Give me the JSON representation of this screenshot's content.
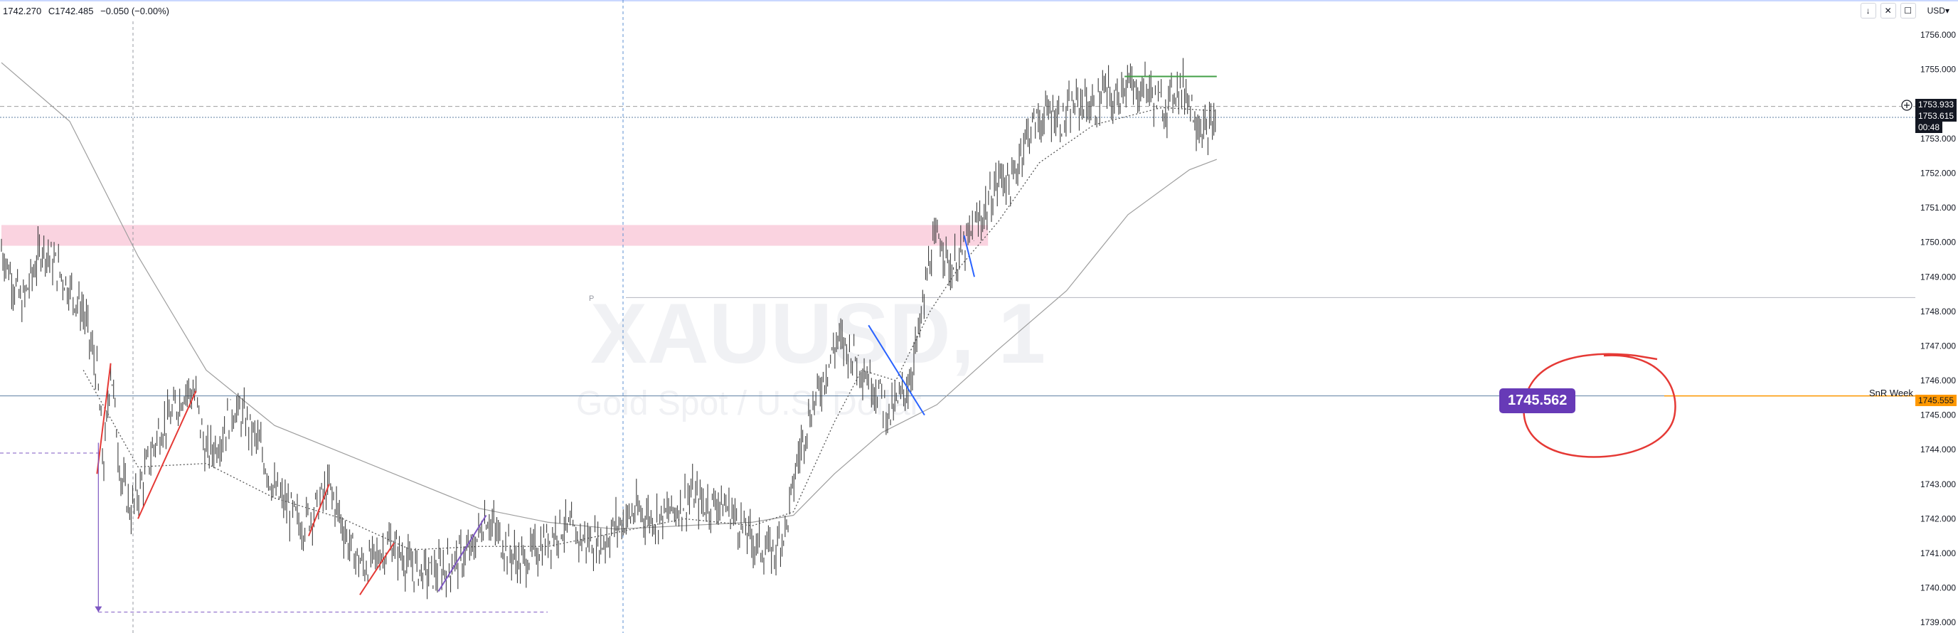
{
  "header": {
    "ohlc_h": "1742.270",
    "ohlc_c": "C1742.485",
    "change": "−0.050 (−0.00%)",
    "currency": "USD▾",
    "buttons": [
      "↓",
      "✕",
      "☐"
    ]
  },
  "watermark": {
    "symbol": "XAUUSD, 1",
    "description": "Gold Spot / U.S. Dollar"
  },
  "axis_labels": {
    "price_a": "1753.933",
    "price_b": "1753.615",
    "countdown": "00:48",
    "snr_price": "1745.555",
    "snr_label": "SnR Week",
    "badge_price": "1745.562",
    "cursor_marker": "P"
  },
  "colors": {
    "candle": "#3c3c3c",
    "sma_fast": "#555555",
    "sma_slow": "#9e9e9e",
    "zone": "#f8bbd0",
    "snr_line": "#5d7fa3",
    "snr_label_bg": "#ff9800",
    "badge_bg": "#673ab7",
    "circle": "#e53935",
    "red_lines": "#e53935",
    "blue_lines": "#2962ff",
    "purple_lines": "#7e57c2",
    "green_line": "#43a047"
  },
  "chart_data": {
    "type": "candlestick",
    "symbol": "XAUUSD",
    "timeframe": "1",
    "ylim": [
      1738.9,
      1756.6
    ],
    "yticks": [
      1739,
      1740,
      1741,
      1742,
      1743,
      1744,
      1745,
      1746,
      1747,
      1748,
      1749,
      1750,
      1751,
      1752,
      1753,
      1755,
      1756
    ],
    "ytick_labels": [
      "1739.000",
      "1740.000",
      "1741.000",
      "1742.000",
      "1743.000",
      "1744.000",
      "1745.000",
      "1746.000",
      "1747.000",
      "1748.000",
      "1749.000",
      "1750.000",
      "1751.000",
      "1752.000",
      "1753.000",
      "1755.000",
      "1756.000"
    ],
    "price_path": [
      [
        0,
        1749.8
      ],
      [
        30,
        1748.2
      ],
      [
        60,
        1749.9
      ],
      [
        90,
        1749.0
      ],
      [
        120,
        1748.0
      ],
      [
        140,
        1746.2
      ],
      [
        150,
        1743.5
      ],
      [
        160,
        1746.5
      ],
      [
        175,
        1743.2
      ],
      [
        190,
        1742.2
      ],
      [
        210,
        1743.3
      ],
      [
        230,
        1744.5
      ],
      [
        250,
        1745.0
      ],
      [
        270,
        1745.8
      ],
      [
        285,
        1745.5
      ],
      [
        300,
        1743.8
      ],
      [
        320,
        1744.3
      ],
      [
        340,
        1745.2
      ],
      [
        360,
        1744.8
      ],
      [
        380,
        1744.0
      ],
      [
        400,
        1742.8
      ],
      [
        420,
        1742.3
      ],
      [
        440,
        1741.8
      ],
      [
        460,
        1742.3
      ],
      [
        480,
        1742.9
      ],
      [
        495,
        1742.1
      ],
      [
        510,
        1741.2
      ],
      [
        530,
        1740.6
      ],
      [
        550,
        1740.9
      ],
      [
        570,
        1741.3
      ],
      [
        600,
        1740.6
      ],
      [
        630,
        1740.4
      ],
      [
        660,
        1740.7
      ],
      [
        690,
        1741.1
      ],
      [
        710,
        1742.1
      ],
      [
        730,
        1741.4
      ],
      [
        760,
        1740.7
      ],
      [
        790,
        1741.2
      ],
      [
        820,
        1741.8
      ],
      [
        850,
        1741.4
      ],
      [
        880,
        1741.3
      ],
      [
        900,
        1741.8
      ],
      [
        930,
        1742.2
      ],
      [
        960,
        1742.0
      ],
      [
        990,
        1742.3
      ],
      [
        1010,
        1742.7
      ],
      [
        1030,
        1742.4
      ],
      [
        1050,
        1742.5
      ],
      [
        1070,
        1742.2
      ],
      [
        1090,
        1741.6
      ],
      [
        1110,
        1741.2
      ],
      [
        1130,
        1741.0
      ],
      [
        1150,
        1741.8
      ],
      [
        1165,
        1743.6
      ],
      [
        1180,
        1744.8
      ],
      [
        1195,
        1745.6
      ],
      [
        1210,
        1746.4
      ],
      [
        1225,
        1747.2
      ],
      [
        1240,
        1746.9
      ],
      [
        1255,
        1746.6
      ],
      [
        1270,
        1746.1
      ],
      [
        1285,
        1745.7
      ],
      [
        1300,
        1745.0
      ],
      [
        1315,
        1745.4
      ],
      [
        1330,
        1746.0
      ],
      [
        1345,
        1747.5
      ],
      [
        1360,
        1749.6
      ],
      [
        1375,
        1750.2
      ],
      [
        1390,
        1749.2
      ],
      [
        1405,
        1749.6
      ],
      [
        1420,
        1750.2
      ],
      [
        1435,
        1750.7
      ],
      [
        1450,
        1751.3
      ],
      [
        1465,
        1752.0
      ],
      [
        1480,
        1751.6
      ],
      [
        1495,
        1752.8
      ],
      [
        1510,
        1753.4
      ],
      [
        1525,
        1753.6
      ],
      [
        1540,
        1753.8
      ],
      [
        1555,
        1753.5
      ],
      [
        1570,
        1753.9
      ],
      [
        1585,
        1754.1
      ],
      [
        1600,
        1753.8
      ],
      [
        1615,
        1754.4
      ],
      [
        1630,
        1754.0
      ],
      [
        1645,
        1754.7
      ],
      [
        1660,
        1754.3
      ],
      [
        1675,
        1754.6
      ],
      [
        1690,
        1754.1
      ],
      [
        1705,
        1753.9
      ],
      [
        1720,
        1754.5
      ],
      [
        1735,
        1754.4
      ],
      [
        1750,
        1753.6
      ],
      [
        1765,
        1753.1
      ],
      [
        1780,
        1753.6
      ]
    ],
    "sma_fast": [
      [
        120,
        1746.3
      ],
      [
        200,
        1743.5
      ],
      [
        300,
        1743.6
      ],
      [
        400,
        1742.6
      ],
      [
        500,
        1742.0
      ],
      [
        600,
        1741.1
      ],
      [
        700,
        1741.2
      ],
      [
        800,
        1741.2
      ],
      [
        900,
        1741.6
      ],
      [
        1000,
        1742.0
      ],
      [
        1100,
        1741.8
      ],
      [
        1160,
        1742.2
      ],
      [
        1220,
        1744.8
      ],
      [
        1260,
        1746.3
      ],
      [
        1310,
        1746.0
      ],
      [
        1360,
        1748.0
      ],
      [
        1400,
        1749.2
      ],
      [
        1460,
        1750.6
      ],
      [
        1520,
        1752.3
      ],
      [
        1600,
        1753.4
      ],
      [
        1700,
        1753.9
      ],
      [
        1780,
        1753.8
      ]
    ],
    "sma_slow": [
      [
        0,
        1755.2
      ],
      [
        100,
        1753.5
      ],
      [
        200,
        1749.6
      ],
      [
        300,
        1746.3
      ],
      [
        400,
        1744.7
      ],
      [
        500,
        1743.9
      ],
      [
        600,
        1743.1
      ],
      [
        700,
        1742.3
      ],
      [
        800,
        1741.9
      ],
      [
        900,
        1741.7
      ],
      [
        1000,
        1741.8
      ],
      [
        1100,
        1741.9
      ],
      [
        1160,
        1742.1
      ],
      [
        1220,
        1743.3
      ],
      [
        1290,
        1744.5
      ],
      [
        1370,
        1745.3
      ],
      [
        1460,
        1746.9
      ],
      [
        1560,
        1748.6
      ],
      [
        1650,
        1750.8
      ],
      [
        1740,
        1752.1
      ],
      [
        1780,
        1752.4
      ]
    ],
    "zone": {
      "x0": 0,
      "x1": 1445,
      "y0": 1749.9,
      "y1": 1750.5
    },
    "hlines": [
      {
        "y": 1753.933,
        "style": "dashed",
        "color": "#9e9e9e"
      },
      {
        "y": 1753.615,
        "style": "dotted",
        "color": "#5d7fa3"
      },
      {
        "y": 1748.4,
        "style": "solid",
        "color": "#b2b5be"
      },
      {
        "y": 1745.555,
        "style": "solid",
        "color": "#5d7fa3"
      }
    ],
    "segments_red": [
      [
        [
          140,
          1743.3
        ],
        [
          160,
          1746.5
        ]
      ],
      [
        [
          200,
          1742.0
        ],
        [
          285,
          1745.7
        ]
      ],
      [
        [
          450,
          1741.5
        ],
        [
          480,
          1743.0
        ]
      ],
      [
        [
          525,
          1739.8
        ],
        [
          575,
          1741.3
        ]
      ]
    ],
    "segments_blue": [
      [
        [
          1270,
          1747.6
        ],
        [
          1352,
          1745.0
        ]
      ],
      [
        [
          1410,
          1750.2
        ],
        [
          1425,
          1749.0
        ]
      ]
    ],
    "segments_purple": [
      [
        [
          640,
          1739.9
        ],
        [
          710,
          1742.1
        ]
      ]
    ],
    "segment_green": [
      [
        1645,
        1754.8
      ],
      [
        1780,
        1754.8
      ]
    ],
    "measure": {
      "x": 142,
      "y_top": 1744.2,
      "y_bottom": 1739.3,
      "x_end": 800,
      "y_mid": 1743.9
    }
  }
}
